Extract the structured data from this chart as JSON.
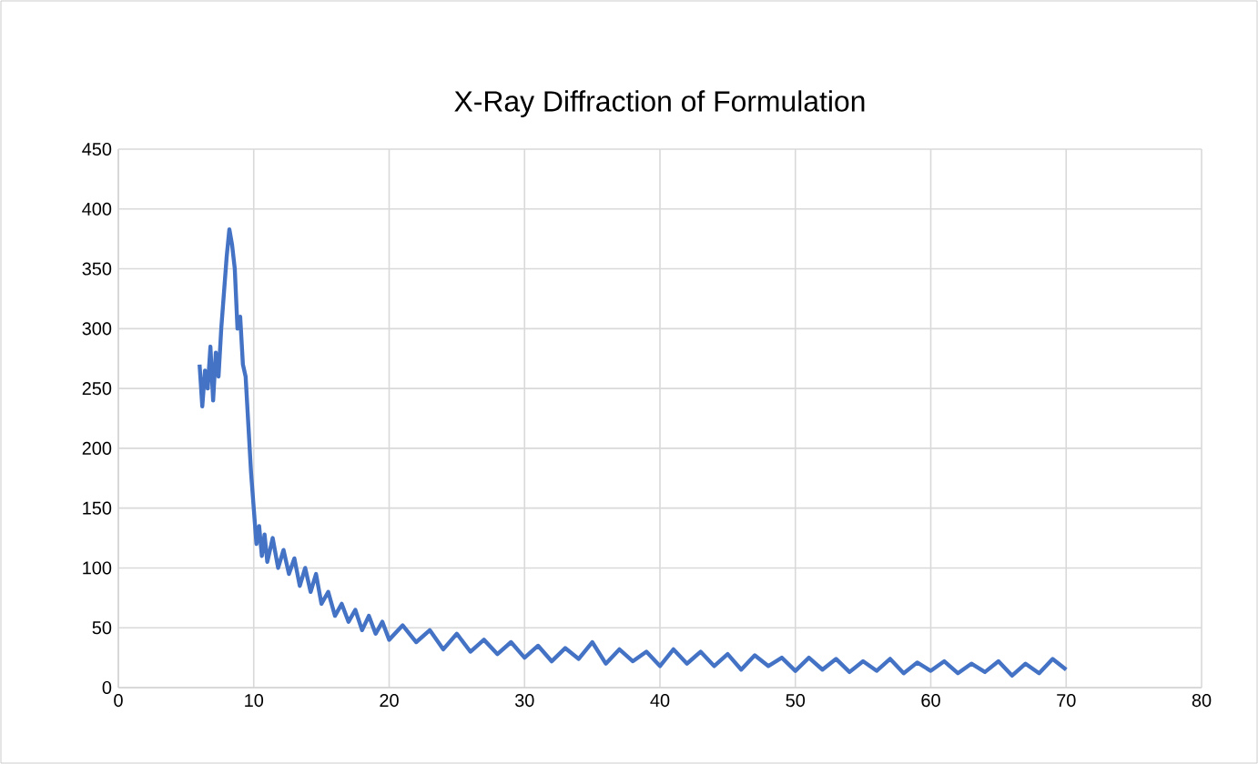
{
  "chart_data": {
    "type": "line",
    "title": "X-Ray Diffraction of Formulation",
    "xlim": [
      0,
      80
    ],
    "xticks": [
      0,
      10,
      20,
      30,
      40,
      50,
      60,
      70,
      80
    ],
    "ylim": [
      0,
      450
    ],
    "yticks": [
      0,
      50,
      100,
      150,
      200,
      250,
      300,
      350,
      400,
      450
    ],
    "grid": true,
    "marker": "none",
    "line_style": "solid",
    "series": [
      {
        "color": "#4472c4",
        "x": [
          6.0,
          6.2,
          6.4,
          6.6,
          6.8,
          7.0,
          7.2,
          7.4,
          7.6,
          7.8,
          8.0,
          8.2,
          8.4,
          8.6,
          8.8,
          9.0,
          9.2,
          9.4,
          9.6,
          9.8,
          10.0,
          10.2,
          10.4,
          10.6,
          10.8,
          11.0,
          11.4,
          11.8,
          12.2,
          12.6,
          13.0,
          13.4,
          13.8,
          14.2,
          14.6,
          15.0,
          15.5,
          16,
          16.5,
          17,
          17.5,
          18,
          18.5,
          19,
          19.5,
          20,
          21,
          22,
          23,
          24,
          25,
          26,
          27,
          28,
          29,
          30,
          31,
          32,
          33,
          34,
          35,
          36,
          37,
          38,
          39,
          40,
          41,
          42,
          43,
          44,
          45,
          46,
          47,
          48,
          49,
          50,
          51,
          52,
          53,
          54,
          55,
          56,
          57,
          58,
          59,
          60,
          61,
          62,
          63,
          64,
          65,
          66,
          67,
          68,
          69,
          70
        ],
        "values": [
          270,
          235,
          265,
          250,
          285,
          240,
          280,
          260,
          300,
          330,
          360,
          383,
          370,
          350,
          300,
          310,
          270,
          260,
          220,
          180,
          150,
          120,
          135,
          110,
          128,
          105,
          125,
          100,
          115,
          95,
          108,
          85,
          100,
          80,
          95,
          70,
          80,
          60,
          70,
          55,
          65,
          48,
          60,
          45,
          55,
          40,
          52,
          38,
          48,
          32,
          45,
          30,
          40,
          28,
          38,
          25,
          35,
          22,
          33,
          24,
          38,
          20,
          32,
          22,
          30,
          18,
          32,
          20,
          30,
          18,
          28,
          15,
          27,
          18,
          25,
          14,
          25,
          15,
          24,
          13,
          22,
          14,
          24,
          12,
          21,
          14,
          22,
          12,
          20,
          13,
          22,
          10,
          20,
          12,
          24,
          15
        ]
      }
    ]
  }
}
